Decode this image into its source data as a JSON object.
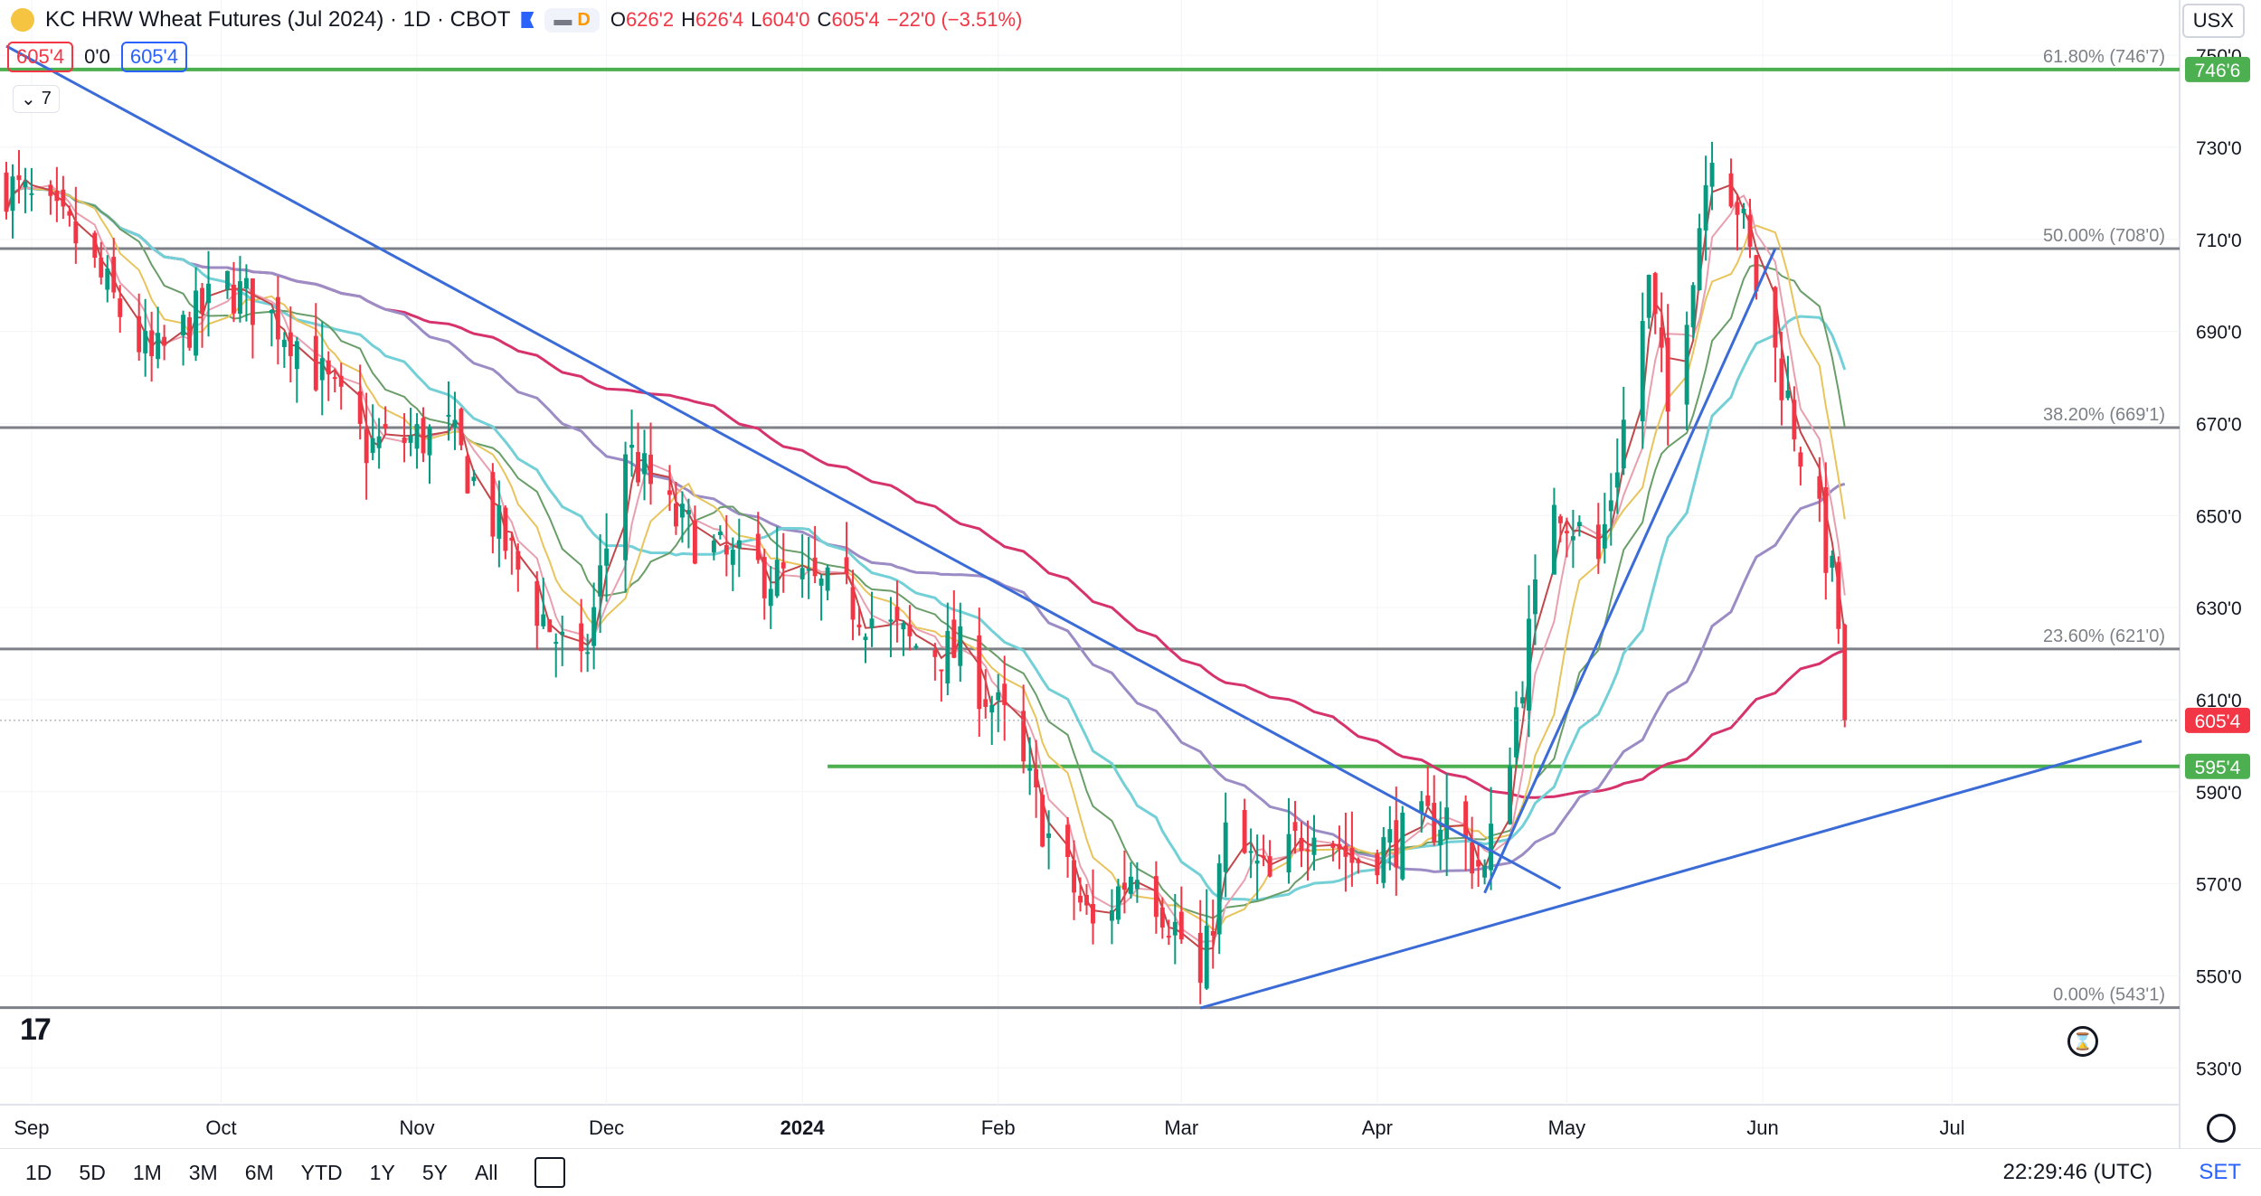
{
  "header": {
    "title": "KC HRW Wheat Futures (Jul 2024) · 1D · CBOT",
    "pill_label": "D",
    "ohlc": {
      "o_label": "O",
      "o": "626'2",
      "h_label": "H",
      "h": "626'4",
      "l_label": "L",
      "l": "604'0",
      "c_label": "C",
      "c": "605'4",
      "chg": "−22'0 (−3.51%)"
    },
    "sell": "605'4",
    "spread": "0'0",
    "buy": "605'4",
    "indicators_count": "7",
    "currency": "USX"
  },
  "colors": {
    "up": "#089981",
    "down": "#f23645",
    "fib": "#5d606b",
    "support": "#4caf50",
    "trend": "#3a6bd6",
    "ma200": "#d6336c",
    "ma100": "#9c8cc5",
    "ma50": "#73d0d6",
    "ma20": "#6a9e69",
    "ma10": "#e8c45c",
    "ma5": "#e8a0b0",
    "ma3": "#c2474a"
  },
  "chart_data": {
    "type": "candlestick",
    "title": "KC HRW Wheat Futures (Jul 2024)",
    "ylim": [
      522,
      762
    ],
    "y_ticks": [
      530,
      550,
      570,
      590,
      610,
      630,
      650,
      670,
      690,
      710,
      730,
      750
    ],
    "y_tick_labels": [
      "530'0",
      "550'0",
      "570'0",
      "590'0",
      "610'0",
      "630'0",
      "650'0",
      "670'0",
      "690'0",
      "710'0",
      "730'0",
      "750'0"
    ],
    "x_ticks": [
      "Sep",
      "Oct",
      "Nov",
      "Dec",
      "2024",
      "Feb",
      "Mar",
      "Apr",
      "May",
      "Jun",
      "Jul"
    ],
    "last_price": "605'4",
    "support_label": "595'4",
    "top_label": "746'6",
    "fib_levels": [
      {
        "label": "61.80% (746'7)",
        "value": 746.9
      },
      {
        "label": "50.00% (708'0)",
        "value": 708.0
      },
      {
        "label": "38.20% (669'1)",
        "value": 669.1
      },
      {
        "label": "23.60% (621'0)",
        "value": 621.0
      },
      {
        "label": "0.00% (543'1)",
        "value": 543.1
      }
    ],
    "support_level": 595.5,
    "anchors": [
      {
        "date": "2023-08-28",
        "close": 722
      },
      {
        "date": "2023-09-08",
        "close": 710
      },
      {
        "date": "2023-09-20",
        "close": 683
      },
      {
        "date": "2023-10-02",
        "close": 700
      },
      {
        "date": "2023-10-12",
        "close": 690
      },
      {
        "date": "2023-10-24",
        "close": 665
      },
      {
        "date": "2023-11-06",
        "close": 668
      },
      {
        "date": "2023-11-20",
        "close": 630
      },
      {
        "date": "2023-11-27",
        "close": 615
      },
      {
        "date": "2023-12-04",
        "close": 665
      },
      {
        "date": "2023-12-11",
        "close": 650
      },
      {
        "date": "2023-12-20",
        "close": 640
      },
      {
        "date": "2024-01-08",
        "close": 632
      },
      {
        "date": "2024-01-18",
        "close": 622
      },
      {
        "date": "2024-01-26",
        "close": 620
      },
      {
        "date": "2024-02-02",
        "close": 605
      },
      {
        "date": "2024-02-09",
        "close": 580
      },
      {
        "date": "2024-02-16",
        "close": 560
      },
      {
        "date": "2024-02-23",
        "close": 575
      },
      {
        "date": "2024-03-01",
        "close": 558
      },
      {
        "date": "2024-03-04",
        "close": 547
      },
      {
        "date": "2024-03-08",
        "close": 580
      },
      {
        "date": "2024-03-15",
        "close": 570
      },
      {
        "date": "2024-03-22",
        "close": 585
      },
      {
        "date": "2024-03-28",
        "close": 575
      },
      {
        "date": "2024-04-05",
        "close": 580
      },
      {
        "date": "2024-04-12",
        "close": 585
      },
      {
        "date": "2024-04-18",
        "close": 572
      },
      {
        "date": "2024-04-22",
        "close": 600
      },
      {
        "date": "2024-04-29",
        "close": 655
      },
      {
        "date": "2024-05-06",
        "close": 640
      },
      {
        "date": "2024-05-10",
        "close": 670
      },
      {
        "date": "2024-05-14",
        "close": 700
      },
      {
        "date": "2024-05-17",
        "close": 672
      },
      {
        "date": "2024-05-21",
        "close": 705
      },
      {
        "date": "2024-05-24",
        "close": 732
      },
      {
        "date": "2024-05-28",
        "close": 718
      },
      {
        "date": "2024-05-31",
        "close": 700
      },
      {
        "date": "2024-06-05",
        "close": 675
      },
      {
        "date": "2024-06-10",
        "close": 648
      },
      {
        "date": "2024-06-12",
        "close": 636
      },
      {
        "date": "2024-06-13",
        "close": 626
      },
      {
        "date": "2024-06-14",
        "close": 605.5
      }
    ],
    "trendlines": [
      {
        "name": "downtrend",
        "from": {
          "date": "2023-08-28",
          "value": 752
        },
        "to": {
          "date": "2024-04-30",
          "value": 569
        }
      },
      {
        "name": "lower-uptrend",
        "from": {
          "date": "2024-03-04",
          "value": 543
        },
        "to": {
          "date": "2024-07-31",
          "value": 601
        }
      },
      {
        "name": "steep-uptrend",
        "from": {
          "date": "2024-04-18",
          "value": 568
        },
        "to": {
          "date": "2024-06-03",
          "value": 708
        }
      }
    ]
  },
  "toolbar": {
    "timeframes": [
      "1D",
      "5D",
      "1M",
      "3M",
      "6M",
      "YTD",
      "1Y",
      "5Y",
      "All"
    ],
    "clock": "22:29:46 (UTC)",
    "set_label": "SET"
  }
}
